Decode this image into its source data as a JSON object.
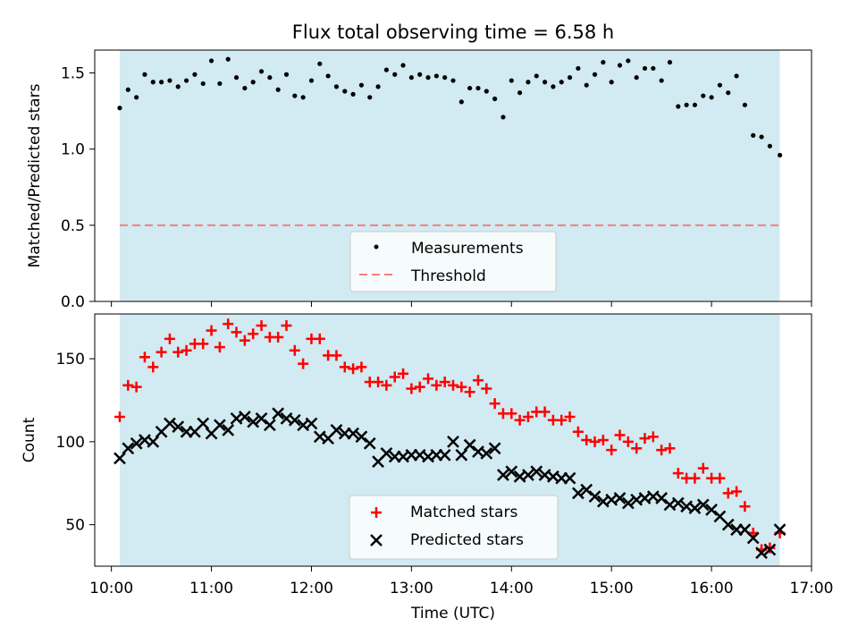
{
  "title": "Flux total observing time = 6.58 h",
  "chart_data": [
    {
      "type": "scatter",
      "ylabel": "Matched/Predicted stars",
      "ylim": [
        0,
        1.65
      ],
      "yticks": [
        0.0,
        0.5,
        1.0,
        1.5
      ],
      "ytick_labels": [
        "0.0",
        "0.5",
        "1.0",
        "1.5"
      ],
      "shaded_span": [
        "10:05",
        "16:41"
      ],
      "threshold": 0.5,
      "legend": {
        "position": "bottom-center",
        "entries": [
          "Measurements",
          "Threshold"
        ]
      },
      "colors": {
        "measurements": "#000000",
        "threshold": "#f08080",
        "shade": "#add8e6"
      },
      "series": [
        {
          "name": "Measurements",
          "x": [
            "10:05",
            "10:10",
            "10:15",
            "10:20",
            "10:25",
            "10:30",
            "10:35",
            "10:40",
            "10:45",
            "10:50",
            "10:55",
            "11:00",
            "11:05",
            "11:10",
            "11:15",
            "11:20",
            "11:25",
            "11:30",
            "11:35",
            "11:40",
            "11:45",
            "11:50",
            "11:55",
            "12:00",
            "12:05",
            "12:10",
            "12:15",
            "12:20",
            "12:25",
            "12:30",
            "12:35",
            "12:40",
            "12:45",
            "12:50",
            "12:55",
            "13:00",
            "13:05",
            "13:10",
            "13:15",
            "13:20",
            "13:25",
            "13:30",
            "13:35",
            "13:40",
            "13:45",
            "13:50",
            "13:55",
            "14:00",
            "14:05",
            "14:10",
            "14:15",
            "14:20",
            "14:25",
            "14:30",
            "14:35",
            "14:40",
            "14:45",
            "14:50",
            "14:55",
            "15:00",
            "15:05",
            "15:10",
            "15:15",
            "15:20",
            "15:25",
            "15:30",
            "15:35",
            "15:40",
            "15:45",
            "15:50",
            "15:55",
            "16:00",
            "16:05",
            "16:10",
            "16:15",
            "16:20",
            "16:25",
            "16:30",
            "16:35",
            "16:41"
          ],
          "values": [
            1.27,
            1.39,
            1.34,
            1.49,
            1.44,
            1.44,
            1.45,
            1.41,
            1.45,
            1.49,
            1.43,
            1.58,
            1.43,
            1.59,
            1.47,
            1.4,
            1.44,
            1.51,
            1.47,
            1.39,
            1.49,
            1.35,
            1.34,
            1.45,
            1.56,
            1.48,
            1.41,
            1.38,
            1.36,
            1.42,
            1.34,
            1.41,
            1.52,
            1.49,
            1.55,
            1.47,
            1.49,
            1.47,
            1.48,
            1.47,
            1.45,
            1.31,
            1.4,
            1.4,
            1.38,
            1.33,
            1.21,
            1.45,
            1.37,
            1.44,
            1.48,
            1.44,
            1.41,
            1.44,
            1.47,
            1.53,
            1.42,
            1.49,
            1.57,
            1.44,
            1.55,
            1.58,
            1.47,
            1.53,
            1.53,
            1.45,
            1.57,
            1.28,
            1.29,
            1.29,
            1.35,
            1.34,
            1.42,
            1.37,
            1.48,
            1.29,
            1.09,
            1.08,
            1.02,
            0.96
          ]
        }
      ]
    },
    {
      "type": "scatter",
      "title": "",
      "xlabel": "Time (UTC)",
      "ylabel": "Count",
      "ylim": [
        25,
        177
      ],
      "yticks": [
        50,
        100,
        150
      ],
      "ytick_labels": [
        "50",
        "100",
        "150"
      ],
      "xlim": [
        "09:50",
        "17:00"
      ],
      "xticks": [
        "10:00",
        "11:00",
        "12:00",
        "13:00",
        "14:00",
        "15:00",
        "16:00",
        "17:00"
      ],
      "xtick_labels": [
        "10:00",
        "11:00",
        "12:00",
        "13:00",
        "14:00",
        "15:00",
        "16:00",
        "17:00"
      ],
      "legend": {
        "position": "bottom-center",
        "entries": [
          "Matched stars",
          "Predicted stars"
        ]
      },
      "colors": {
        "matched": "#ff0000",
        "predicted": "#000000"
      },
      "series": [
        {
          "name": "Matched stars",
          "values": [
            115,
            134,
            133,
            151,
            145,
            154,
            162,
            154,
            155,
            159,
            159,
            167,
            157,
            171,
            166,
            161,
            165,
            170,
            163,
            163,
            170,
            155,
            147,
            162,
            162,
            152,
            152,
            145,
            144,
            145,
            136,
            136,
            134,
            139,
            141,
            132,
            133,
            138,
            134,
            136,
            134,
            133,
            130,
            137,
            132,
            123,
            117,
            117,
            113,
            115,
            118,
            118,
            113,
            113,
            115,
            106,
            101,
            100,
            101,
            95,
            104,
            100,
            96,
            102,
            103,
            95,
            96,
            81,
            78,
            78,
            84,
            78,
            78,
            69,
            70,
            61,
            45,
            35,
            36,
            45
          ]
        },
        {
          "name": "Predicted stars",
          "values": [
            90,
            96,
            99,
            101,
            100,
            106,
            111,
            109,
            106,
            106,
            111,
            105,
            110,
            107,
            114,
            115,
            112,
            114,
            110,
            117,
            114,
            113,
            110,
            111,
            103,
            102,
            107,
            105,
            105,
            103,
            99,
            88,
            93,
            91,
            91,
            92,
            92,
            91,
            92,
            92,
            100,
            92,
            98,
            94,
            93,
            96,
            80,
            82,
            79,
            80,
            82,
            80,
            79,
            78,
            78,
            69,
            71,
            67,
            64,
            65,
            66,
            63,
            65,
            66,
            67,
            66,
            62,
            63,
            61,
            60,
            62,
            59,
            55,
            50,
            47,
            47,
            42,
            33,
            35,
            47
          ]
        }
      ]
    }
  ]
}
